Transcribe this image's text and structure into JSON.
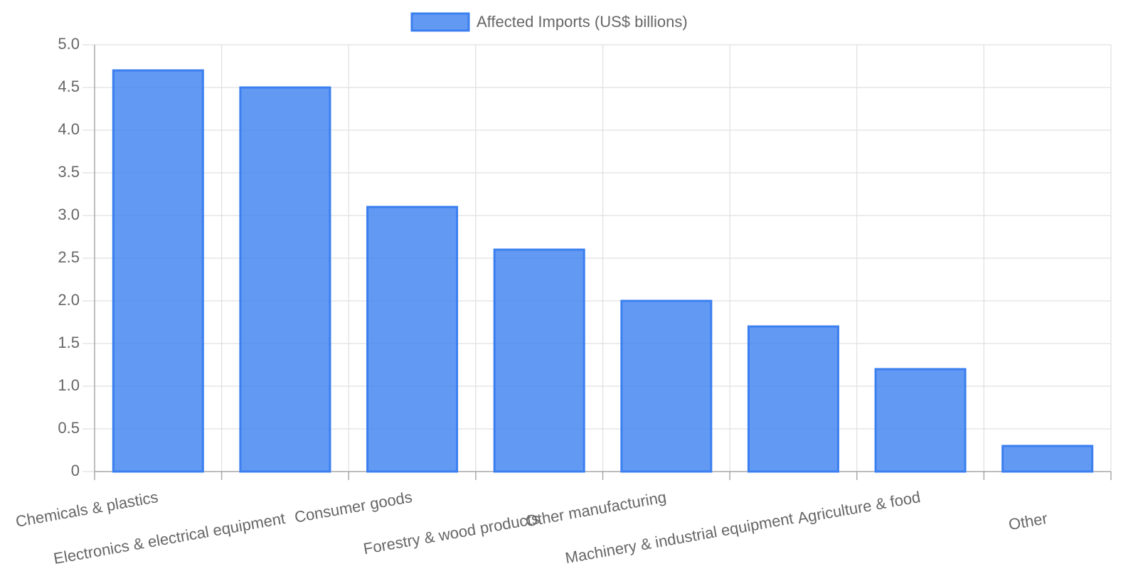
{
  "chart_data": {
    "type": "bar",
    "categories": [
      "Chemicals & plastics",
      "Electronics & electrical equipment",
      "Consumer goods",
      "Forestry & wood products",
      "Other manufacturing",
      "Machinery & industrial equipment",
      "Agriculture & food",
      "Other"
    ],
    "series": [
      {
        "name": "Affected Imports (US$ billions)",
        "color": "#3b7ff0",
        "values": [
          4.7,
          4.5,
          3.1,
          2.6,
          2.0,
          1.7,
          1.2,
          0.3
        ]
      }
    ],
    "ylim": [
      0,
      5
    ],
    "yticks": [
      0,
      0.5,
      {
        "value": 1,
        "label": "1.0"
      },
      1.5,
      {
        "value": 2,
        "label": "2.0"
      },
      2.5,
      {
        "value": 3,
        "label": "3.0"
      },
      3.5,
      {
        "value": 4,
        "label": "4.0"
      },
      4.5,
      {
        "value": 5,
        "label": "5.0"
      }
    ],
    "grid": true,
    "legend": "top"
  }
}
